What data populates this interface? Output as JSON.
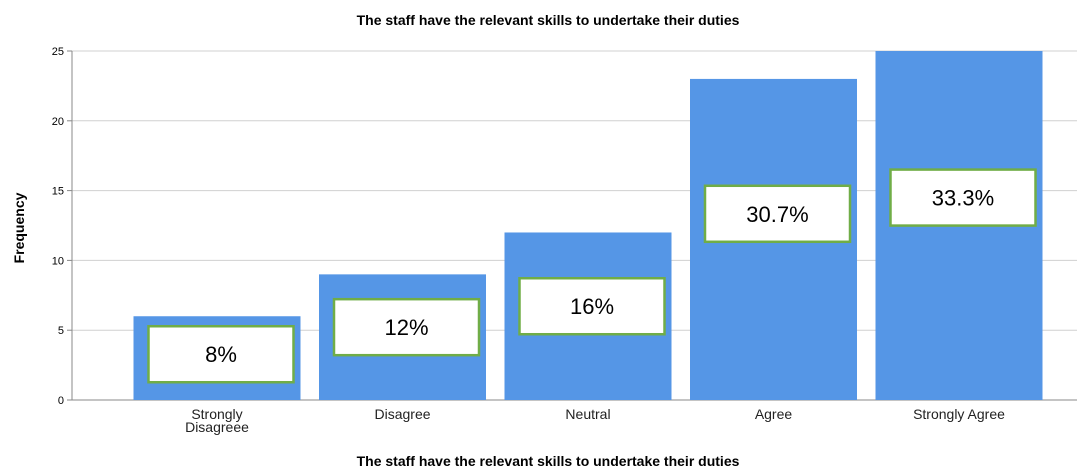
{
  "chart_data": {
    "type": "bar",
    "title": "The staff have the relevant skills to undertake their duties",
    "xlabel": "The staff have the relevant skills to undertake their duties",
    "ylabel": "Frequency",
    "categories": [
      "Strongly Disagreee",
      "Disagree",
      "Neutral",
      "Agree",
      "Strongly Agree"
    ],
    "category_lines": [
      [
        "Strongly",
        "Disagreee"
      ],
      [
        "Disagree"
      ],
      [
        "Neutral"
      ],
      [
        "Agree"
      ],
      [
        "Strongly Agree"
      ]
    ],
    "values": [
      6,
      9,
      12,
      23,
      25
    ],
    "percent_labels": [
      "8%",
      "12%",
      "16%",
      "30.7%",
      "33.3%"
    ],
    "yticks": [
      0,
      5,
      10,
      15,
      20,
      25
    ],
    "ylim": [
      0,
      25
    ],
    "grid": true,
    "bar_color": "#5596e6",
    "label_border_color": "#70ad47"
  }
}
